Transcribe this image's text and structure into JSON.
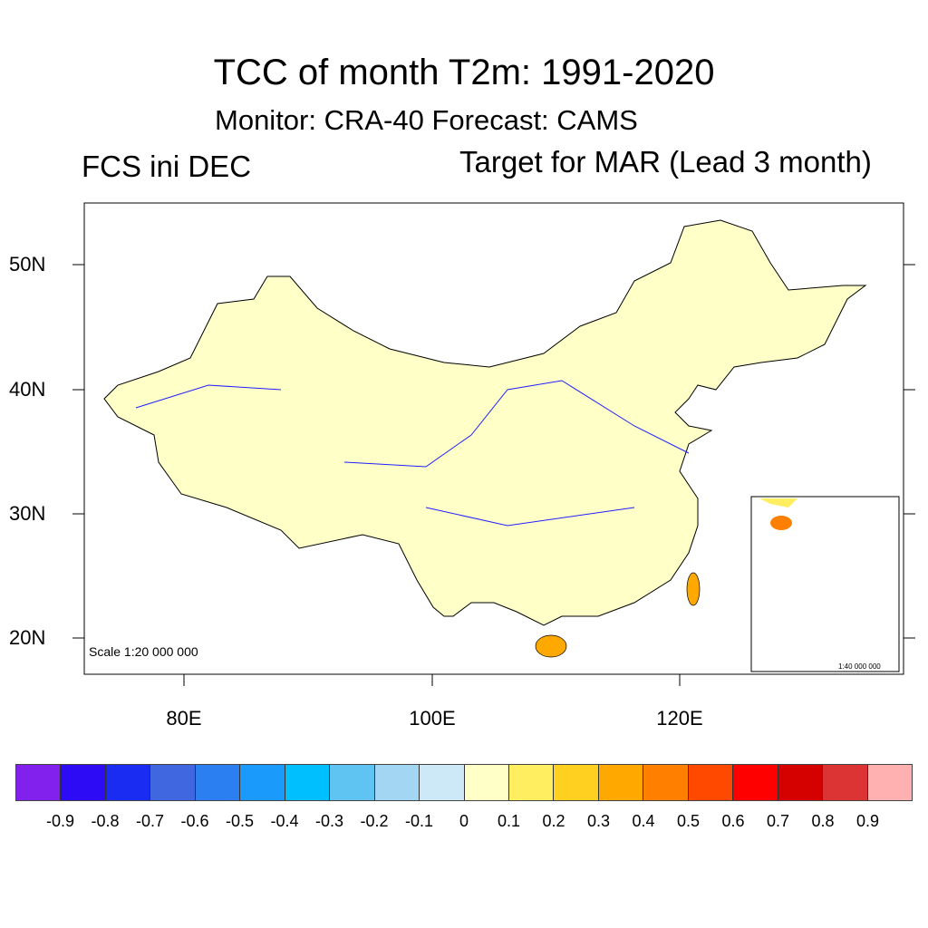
{
  "title": "TCC of month T2m: 1991-2020",
  "subtitle": "Monitor: CRA-40   Forecast: CAMS",
  "left_subtitle": "FCS ini DEC",
  "right_subtitle": "Target for MAR (Lead 3 month)",
  "y_ticks": [
    "50N",
    "40N",
    "30N",
    "20N"
  ],
  "x_ticks": [
    "80E",
    "100E",
    "120E"
  ],
  "scale_label": "Scale 1:20 000 000",
  "inset_scale_label": "1:40 000 000",
  "colorbar": {
    "colors": [
      "#8220ee",
      "#2d0cf5",
      "#1a2cf2",
      "#4066e0",
      "#2b7ff0",
      "#1a9afa",
      "#00bfff",
      "#5fc4f2",
      "#a2d6f2",
      "#cde9f7",
      "#ffffc8",
      "#ffee60",
      "#ffd020",
      "#ffa800",
      "#ff8000",
      "#ff4800",
      "#ff0000",
      "#d50000",
      "#dc3434",
      "#ffb0b0"
    ],
    "labels": [
      "-0.9",
      "-0.8",
      "-0.7",
      "-0.6",
      "-0.5",
      "-0.4",
      "-0.3",
      "-0.2",
      "-0.1",
      "0",
      "0.1",
      "0.2",
      "0.3",
      "0.4",
      "0.5",
      "0.6",
      "0.7",
      "0.8",
      "0.9"
    ]
  }
}
